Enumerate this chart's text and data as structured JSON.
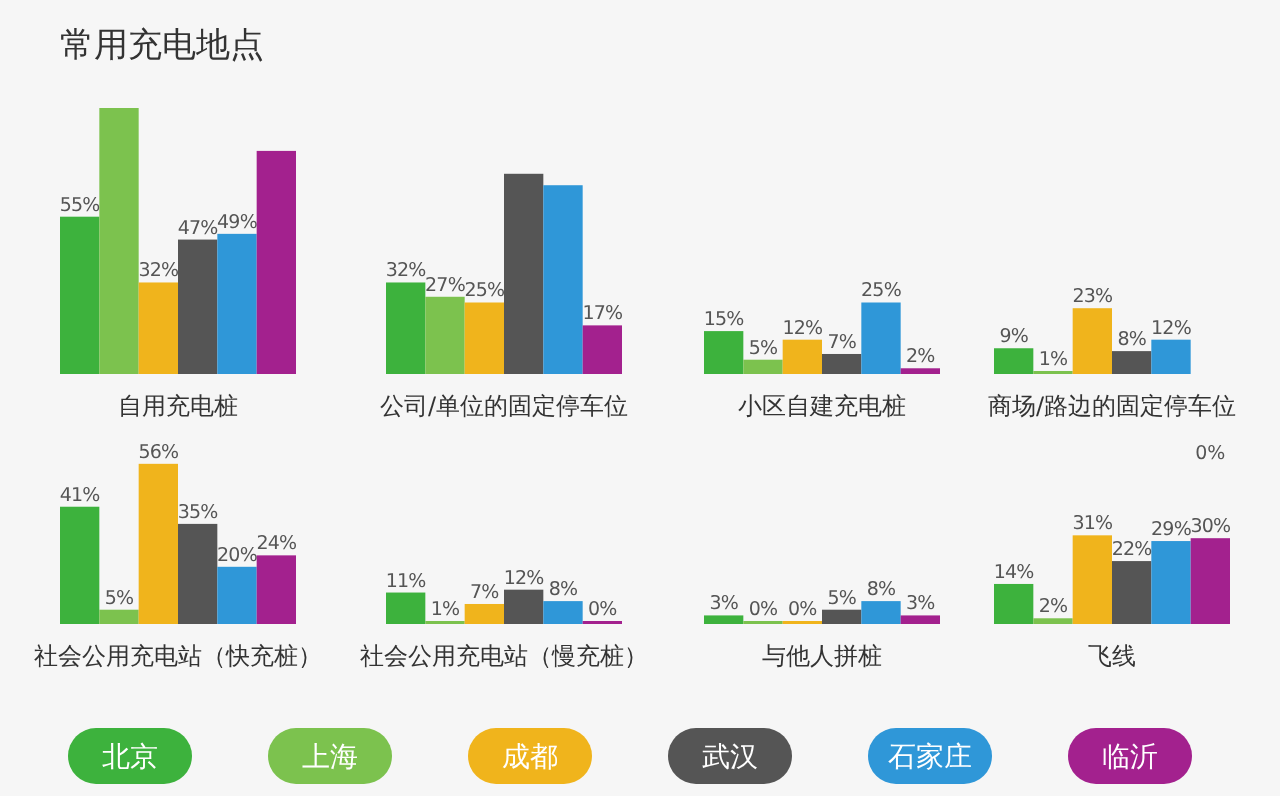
{
  "chart_data": [
    {
      "type": "bar",
      "title": "常用充电地点",
      "categories": [
        "自用充电桩",
        "公司/单位的固定停车位",
        "小区自建充电桩",
        "商场/路边的固定停车位"
      ],
      "series": [
        {
          "color": "#3db23d",
          "values": [
            55,
            32,
            15,
            9
          ],
          "value_labels": [
            "55%",
            "32%",
            "15%",
            "9%"
          ]
        },
        {
          "color": "#7cc24e",
          "values": [
            93,
            27,
            5,
            1
          ],
          "value_labels": [
            null,
            "27%",
            "5%",
            "1%"
          ]
        },
        {
          "color": "#f0b41c",
          "values": [
            32,
            25,
            12,
            23
          ],
          "value_labels": [
            "32%",
            "25%",
            "12%",
            "23%"
          ]
        },
        {
          "color": "#555555",
          "values": [
            47,
            70,
            7,
            8
          ],
          "value_labels": [
            "47%",
            null,
            "7%",
            "8%"
          ]
        },
        {
          "color": "#2f97d8",
          "values": [
            49,
            66,
            25,
            12
          ],
          "value_labels": [
            "49%",
            null,
            "25%",
            "12%"
          ]
        },
        {
          "color": "#a3218e",
          "values": [
            78,
            17,
            2,
            null
          ],
          "value_labels": [
            null,
            "17%",
            "2%",
            null
          ]
        }
      ]
    },
    {
      "type": "bar",
      "categories": [
        "社会公用充电站（快充桩）",
        "社会公用充电站（慢充桩）",
        "与他人拼桩",
        "飞线"
      ],
      "legend": "bottom",
      "annotations": [
        "0%"
      ],
      "series": [
        {
          "name": "北京",
          "color": "#3db23d",
          "values": [
            41,
            11,
            3,
            14
          ],
          "value_labels": [
            "41%",
            "11%",
            "3%",
            "14%"
          ]
        },
        {
          "name": "上海",
          "color": "#7cc24e",
          "values": [
            5,
            1,
            0,
            2
          ],
          "value_labels": [
            "5%",
            "1%",
            "0%",
            "2%"
          ]
        },
        {
          "name": "成都",
          "color": "#f0b41c",
          "values": [
            56,
            7,
            0,
            31
          ],
          "value_labels": [
            "56%",
            "7%",
            "0%",
            "31%"
          ]
        },
        {
          "name": "武汉",
          "color": "#555555",
          "values": [
            35,
            12,
            5,
            22
          ],
          "value_labels": [
            "35%",
            "12%",
            "5%",
            "22%"
          ]
        },
        {
          "name": "石家庄",
          "color": "#2f97d8",
          "values": [
            20,
            8,
            8,
            29
          ],
          "value_labels": [
            "20%",
            "8%",
            "8%",
            "29%"
          ]
        },
        {
          "name": "临沂",
          "color": "#a3218e",
          "values": [
            24,
            0,
            3,
            30
          ],
          "value_labels": [
            "24%",
            "0%",
            "3%",
            "30%"
          ]
        }
      ]
    }
  ]
}
